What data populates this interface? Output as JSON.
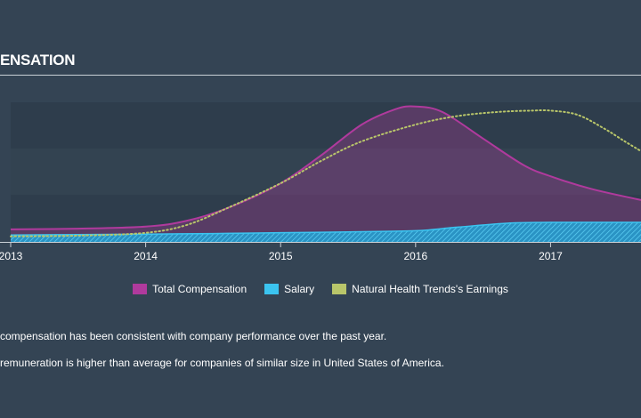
{
  "header": {
    "section_title": "ENSATION"
  },
  "colors": {
    "background": "#344454",
    "total_compensation": "#b03a9d",
    "salary": "#3bc4f0",
    "earnings": "#b9c66a"
  },
  "chart_data": {
    "type": "area",
    "title": "",
    "xlabel": "",
    "ylabel": "",
    "x_ticks": [
      "2013",
      "2014",
      "2015",
      "2016",
      "2017"
    ],
    "xlim": [
      2013,
      2017.67
    ],
    "ylim": [
      0,
      100
    ],
    "y_axis_labels_visible": false,
    "grid": "horizontal bands",
    "legend_position": "bottom-center",
    "series": [
      {
        "name": "Total Compensation",
        "kind": "area",
        "color": "#b03a9d",
        "x": [
          2013.0,
          2013.5,
          2014.0,
          2014.3,
          2014.6,
          2015.0,
          2015.3,
          2015.6,
          2015.85,
          2016.0,
          2016.2,
          2016.5,
          2016.8,
          2017.0,
          2017.3,
          2017.67
        ],
        "y": [
          9,
          9.5,
          11,
          15,
          24,
          42,
          62,
          84,
          95,
          97,
          93,
          74,
          55,
          47,
          38,
          30
        ]
      },
      {
        "name": "Salary",
        "kind": "area",
        "color": "#3bc4f0",
        "x": [
          2013.0,
          2013.5,
          2014.0,
          2014.5,
          2015.0,
          2015.5,
          2016.0,
          2016.3,
          2016.7,
          2017.0,
          2017.67
        ],
        "y": [
          5,
          5.3,
          5.6,
          6,
          6.6,
          7.2,
          8,
          10.5,
          13.5,
          14,
          14
        ]
      },
      {
        "name": "Natural Health Trends's Earnings",
        "kind": "dotted-line",
        "color": "#b9c66a",
        "x": [
          2013.0,
          2013.5,
          2014.0,
          2014.3,
          2014.6,
          2015.0,
          2015.3,
          2015.6,
          2016.0,
          2016.3,
          2016.6,
          2016.85,
          2017.0,
          2017.2,
          2017.4,
          2017.55,
          2017.67
        ],
        "y": [
          4,
          4.5,
          6.5,
          12,
          24,
          42,
          58,
          72,
          84,
          90,
          93,
          94,
          94,
          91,
          81,
          72,
          65
        ]
      }
    ]
  },
  "legend": [
    {
      "label": "Total Compensation",
      "color": "#b03a9d"
    },
    {
      "label": "Salary",
      "color": "#3bc4f0"
    },
    {
      "label": "Natural Health Trends's Earnings",
      "color": "#b9c66a"
    }
  ],
  "notes": [
    "compensation has been consistent with company performance over the past year.",
    "remuneration is higher than average for companies of similar size in United States of America."
  ]
}
